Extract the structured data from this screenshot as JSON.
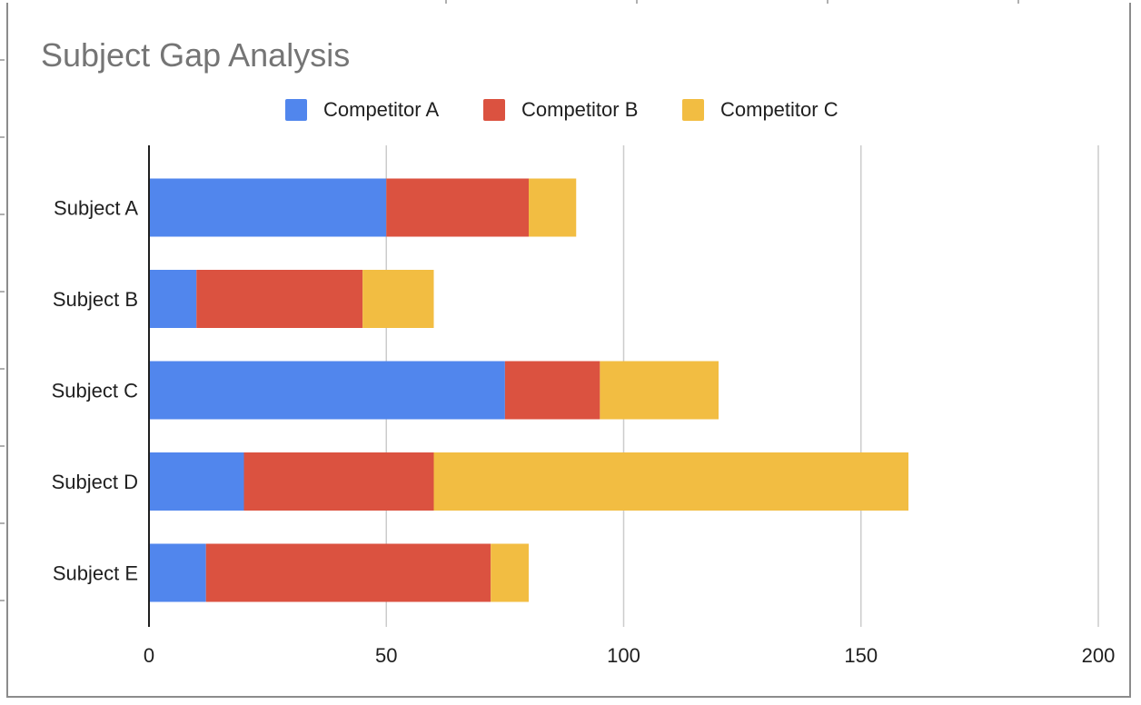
{
  "colors": {
    "competitor_a": "#5186ED",
    "competitor_b": "#DB5240",
    "competitor_c": "#F2BD42",
    "title": "#757575",
    "gridline": "#cccccc",
    "axis": "#1f1f1f"
  },
  "chart_data": {
    "type": "bar",
    "orientation": "horizontal",
    "stacked": true,
    "title": "Subject Gap Analysis",
    "xlabel": "",
    "ylabel": "",
    "categories": [
      "Subject A",
      "Subject B",
      "Subject C",
      "Subject D",
      "Subject E"
    ],
    "series": [
      {
        "name": "Competitor A",
        "color": "#5186ED",
        "values": [
          50,
          10,
          75,
          20,
          12
        ]
      },
      {
        "name": "Competitor B",
        "color": "#DB5240",
        "values": [
          30,
          35,
          20,
          40,
          60
        ]
      },
      {
        "name": "Competitor C",
        "color": "#F2BD42",
        "values": [
          10,
          15,
          25,
          100,
          8
        ]
      }
    ],
    "xlim": [
      0,
      200
    ],
    "xticks": [
      0,
      50,
      100,
      150,
      200
    ],
    "xtick_labels": [
      "0",
      "50",
      "100",
      "150",
      "200"
    ],
    "grid": "vertical",
    "legend_position": "top"
  }
}
